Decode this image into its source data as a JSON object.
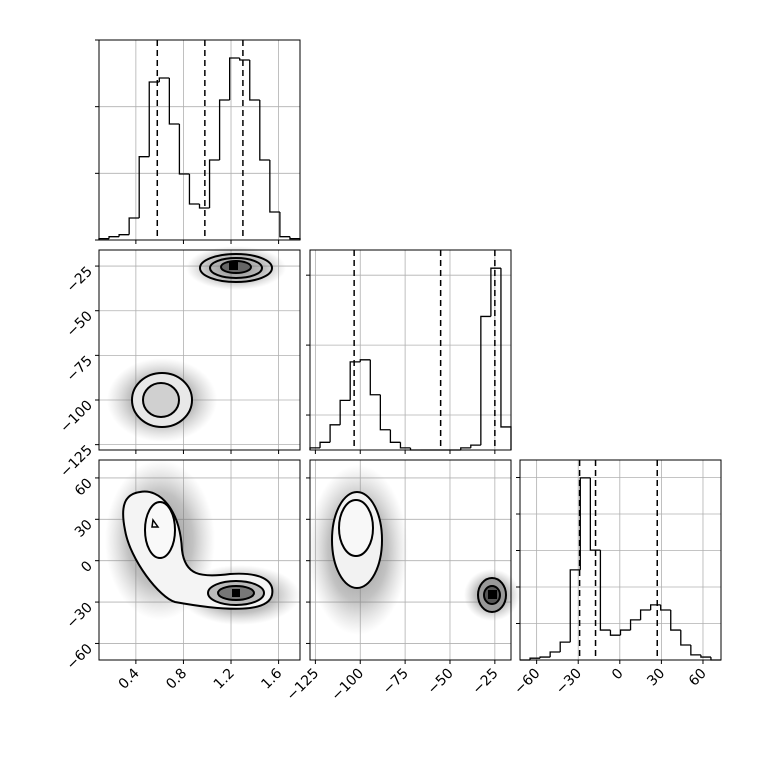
{
  "chart_data": [
    {
      "type": "histogram",
      "bins": [
        0.09,
        0.1745,
        0.259,
        0.3435,
        0.428,
        0.5125,
        0.597,
        0.6815,
        0.766,
        0.8505,
        0.935,
        1.0195,
        1.104,
        1.1885,
        1.273,
        1.3575,
        1.442,
        1.5265,
        1.611,
        1.6955,
        1.78
      ],
      "values": [
        0.02,
        0.05,
        0.08,
        0.33,
        1.25,
        2.37,
        2.43,
        1.74,
        0.99,
        0.54,
        0.48,
        1.2,
        2.1,
        2.73,
        2.7,
        2.1,
        1.2,
        0.42,
        0.05,
        0.02
      ],
      "xlim": [
        0.09,
        1.78
      ],
      "xticks": [
        0.4,
        0.8,
        1.2,
        1.6
      ],
      "ylim": [
        0,
        3
      ],
      "yticks": [
        0,
        1,
        2,
        3
      ],
      "quantiles": [
        0.58,
        0.98,
        1.3
      ],
      "grid": true
    },
    {
      "type": "histogram",
      "bins": [
        -128,
        -122.4,
        -116.8,
        -111.2,
        -105.6,
        -100,
        -94.4,
        -88.8,
        -83.2,
        -77.6,
        -72,
        -66.4,
        -60.8,
        -55.2,
        -49.6,
        -44,
        -38.4,
        -32.8,
        -27.2,
        -21.6,
        -16
      ],
      "values": [
        0.03,
        0.11,
        0.36,
        0.71,
        1.26,
        1.29,
        0.79,
        0.29,
        0.11,
        0.03,
        0,
        0,
        0,
        0,
        0,
        0.03,
        0.07,
        1.91,
        2.6,
        0.33
      ],
      "xlim": [
        -128,
        -16
      ],
      "xticks": [
        {
          "value": -125,
          "label": "−125"
        },
        {
          "value": -100,
          "label": "−100"
        },
        {
          "value": -75,
          "label": "−75"
        },
        {
          "value": -50,
          "label": "−50"
        },
        {
          "value": -25,
          "label": "−25"
        }
      ],
      "ylim": [
        0,
        2.86
      ],
      "yticks": [
        0.5,
        1.5,
        2.5
      ],
      "quantiles": [
        -103.4,
        -55.2,
        -25
      ],
      "grid": true
    },
    {
      "type": "histogram",
      "bins": [
        -72,
        -64.75,
        -57.5,
        -50.25,
        -43,
        -35.75,
        -28.5,
        -21.25,
        -14,
        -6.75,
        0.5,
        7.75,
        15,
        22.25,
        29.5,
        36.75,
        44,
        51.25,
        58.5,
        65.75,
        73
      ],
      "values": [
        0,
        0.05,
        0.08,
        0.22,
        0.49,
        2.47,
        4.99,
        3.01,
        0.82,
        0.68,
        0.82,
        1.1,
        1.37,
        1.51,
        1.37,
        0.82,
        0.41,
        0.14,
        0.08,
        0
      ],
      "xlim": [
        -72,
        73
      ],
      "xticks": [
        {
          "value": -60,
          "label": "−60"
        },
        {
          "value": -30,
          "label": "−30"
        },
        0,
        30,
        60
      ],
      "ylim": [
        0,
        5.48
      ],
      "yticks": [
        1,
        2,
        3,
        4,
        5
      ],
      "quantiles": [
        -29,
        -17.5,
        27
      ],
      "grid": true
    }
  ]
}
